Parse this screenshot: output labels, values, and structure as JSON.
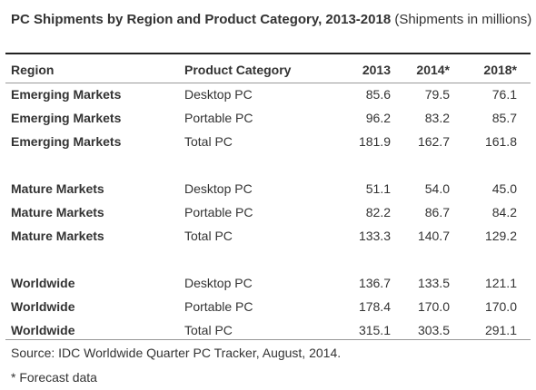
{
  "title": {
    "main": "PC Shipments by Region and Product Category, 2013-2018",
    "sub": "(Shipments in millions)"
  },
  "table": {
    "headers": {
      "region": "Region",
      "category": "Product Category",
      "y2013": "2013",
      "y2014": "2014*",
      "y2018": "2018*"
    },
    "rows": [
      {
        "region": "Emerging Markets",
        "category": "Desktop PC",
        "y2013": "85.6",
        "y2014": "79.5",
        "y2018": "76.1"
      },
      {
        "region": "Emerging Markets",
        "category": "Portable PC",
        "y2013": "96.2",
        "y2014": "83.2",
        "y2018": "85.7"
      },
      {
        "region": "Emerging Markets",
        "category": "Total PC",
        "y2013": "181.9",
        "y2014": "162.7",
        "y2018": "161.8"
      },
      {
        "region": "Mature Markets",
        "category": "Desktop PC",
        "y2013": "51.1",
        "y2014": "54.0",
        "y2018": "45.0"
      },
      {
        "region": "Mature Markets",
        "category": "Portable PC",
        "y2013": "82.2",
        "y2014": "86.7",
        "y2018": "84.2"
      },
      {
        "region": "Mature Markets",
        "category": "Total PC",
        "y2013": "133.3",
        "y2014": "140.7",
        "y2018": "129.2"
      },
      {
        "region": "Worldwide",
        "category": "Desktop PC",
        "y2013": "136.7",
        "y2014": "133.5",
        "y2018": "121.1"
      },
      {
        "region": "Worldwide",
        "category": "Portable PC",
        "y2013": "178.4",
        "y2014": "170.0",
        "y2018": "170.0"
      },
      {
        "region": "Worldwide",
        "category": "Total PC",
        "y2013": "315.1",
        "y2014": "303.5",
        "y2018": "291.1"
      }
    ]
  },
  "source": "Source: IDC Worldwide Quarter PC Tracker, August, 2014.",
  "footnote": "* Forecast data"
}
